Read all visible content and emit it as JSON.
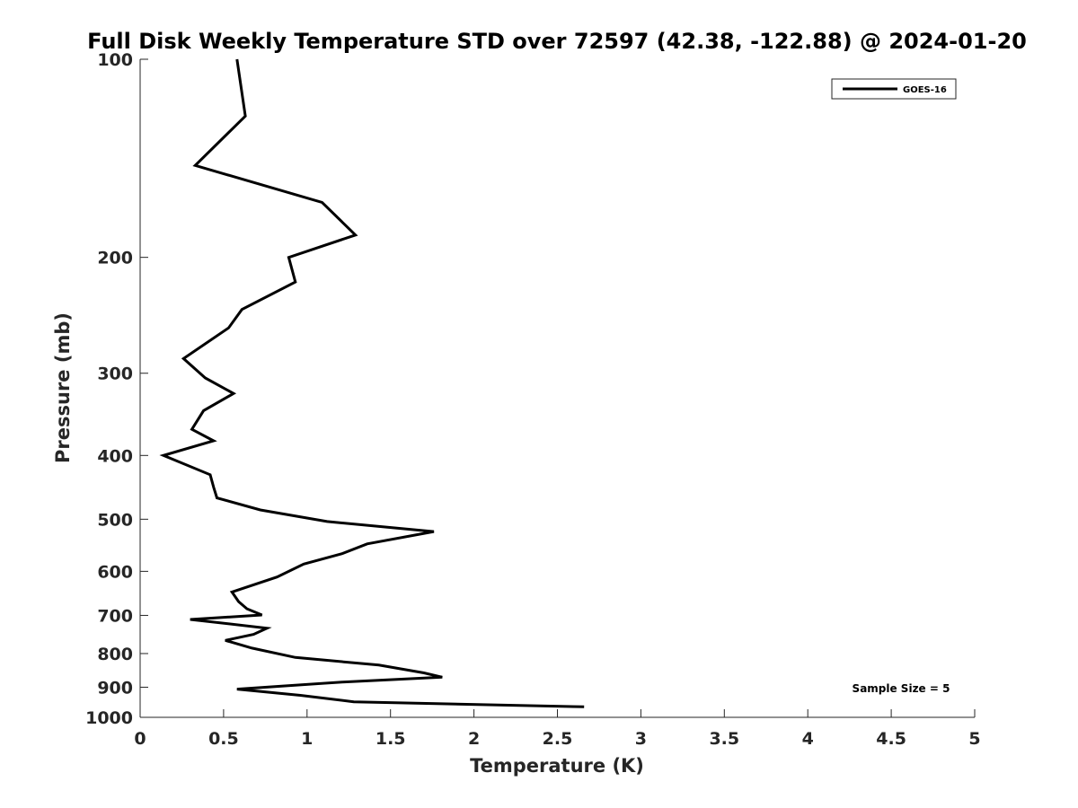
{
  "chart_data": {
    "type": "line",
    "title": "Full Disk Weekly Temperature STD over 72597 (42.38, -122.88) @ 2024-01-20",
    "xlabel": "Temperature (K)",
    "ylabel": "Pressure (mb)",
    "xlim": [
      0,
      5
    ],
    "ylim": [
      1000,
      100
    ],
    "y_scale": "log",
    "y_reversed": true,
    "xticks": [
      "0",
      "0.5",
      "1",
      "1.5",
      "2",
      "2.5",
      "3",
      "3.5",
      "4",
      "4.5",
      "5"
    ],
    "yticks": [
      "100",
      "200",
      "300",
      "400",
      "500",
      "600",
      "700",
      "800",
      "900",
      "1000"
    ],
    "grid": false,
    "legend_position": "top-right",
    "annotation": "Sample Size = 5",
    "series": [
      {
        "name": "GOES-16",
        "color": "#000000",
        "points": [
          [
            0.58,
            100
          ],
          [
            0.63,
            122
          ],
          [
            0.33,
            145
          ],
          [
            1.09,
            165
          ],
          [
            1.29,
            185
          ],
          [
            0.89,
            200
          ],
          [
            0.93,
            218
          ],
          [
            0.61,
            240
          ],
          [
            0.53,
            256
          ],
          [
            0.26,
            285
          ],
          [
            0.39,
            305
          ],
          [
            0.56,
            322
          ],
          [
            0.38,
            342
          ],
          [
            0.31,
            365
          ],
          [
            0.44,
            380
          ],
          [
            0.14,
            400
          ],
          [
            0.42,
            428
          ],
          [
            0.44,
            447
          ],
          [
            0.46,
            464
          ],
          [
            0.72,
            484
          ],
          [
            1.12,
            504
          ],
          [
            1.76,
            522
          ],
          [
            1.36,
            545
          ],
          [
            1.21,
            564
          ],
          [
            0.98,
            585
          ],
          [
            0.82,
            612
          ],
          [
            0.55,
            645
          ],
          [
            0.59,
            667
          ],
          [
            0.64,
            684
          ],
          [
            0.73,
            699
          ],
          [
            0.3,
            710
          ],
          [
            0.76,
            732
          ],
          [
            0.68,
            748
          ],
          [
            0.51,
            764
          ],
          [
            0.67,
            785
          ],
          [
            0.93,
            811
          ],
          [
            1.43,
            833
          ],
          [
            1.7,
            856
          ],
          [
            1.81,
            869
          ],
          [
            1.21,
            884
          ],
          [
            0.58,
            906
          ],
          [
            0.96,
            926
          ],
          [
            1.28,
            947
          ],
          [
            2.66,
            964
          ]
        ]
      }
    ]
  }
}
